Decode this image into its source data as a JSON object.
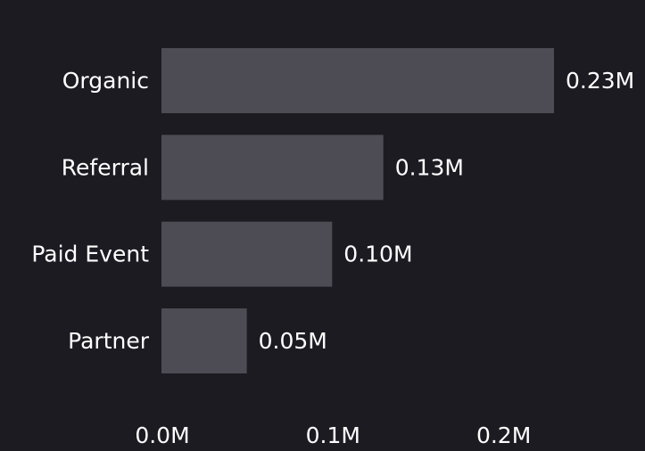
{
  "colors": {
    "background": "#1c1b22",
    "bar": "#4d4c54",
    "text": "#ffffff"
  },
  "chart_data": {
    "type": "bar",
    "orientation": "horizontal",
    "categories": [
      "Organic",
      "Referral",
      "Paid Event",
      "Partner"
    ],
    "values": [
      0.23,
      0.13,
      0.1,
      0.05
    ],
    "value_labels": [
      "0.23M",
      "0.13M",
      "0.10M",
      "0.05M"
    ],
    "value_unit": "M",
    "x_ticks": [
      0.0,
      0.1,
      0.2
    ],
    "x_tick_labels": [
      "0.0M",
      "0.1M",
      "0.2M"
    ],
    "xlim": [
      0,
      0.23
    ],
    "title": "",
    "xlabel": "",
    "ylabel": "",
    "grid": false,
    "legend": "none"
  }
}
